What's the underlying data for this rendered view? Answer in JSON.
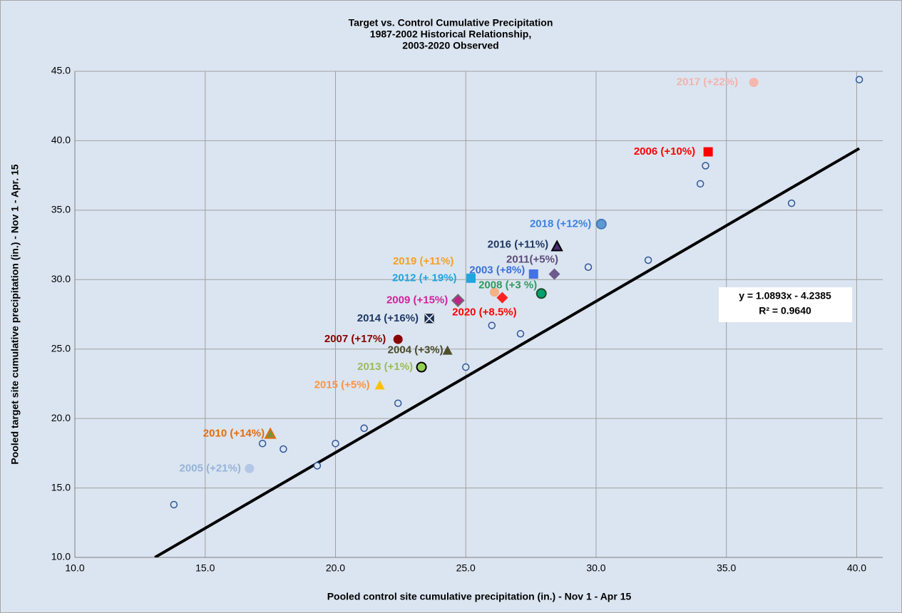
{
  "chart_data": {
    "type": "scatter",
    "title": "Target vs. Control Cumulative Precipitation",
    "subtitle": [
      "1987-2002 Historical Relationship,",
      "2003-2020 Observed"
    ],
    "x_label": "Pooled control site cumulative precipitation (in.) - Nov 1 - Apr 15",
    "y_label": "Pooled target site cumulative precipitation (in.) - Nov 1 - Apr. 15",
    "xlim": [
      10,
      41
    ],
    "ylim": [
      10,
      45
    ],
    "xticks": [
      {
        "value": 10,
        "label": "10.0"
      },
      {
        "value": 15,
        "label": "15.0"
      },
      {
        "value": 20,
        "label": "20.0"
      },
      {
        "value": 25,
        "label": "25.0"
      },
      {
        "value": 30,
        "label": "30.0"
      },
      {
        "value": 35,
        "label": "35.0"
      },
      {
        "value": 40,
        "label": "40.0"
      }
    ],
    "yticks": [
      {
        "value": 10,
        "label": "10.0"
      },
      {
        "value": 15,
        "label": "15.0"
      },
      {
        "value": 20,
        "label": "20.0"
      },
      {
        "value": 25,
        "label": "25.0"
      },
      {
        "value": 30,
        "label": "30.0"
      },
      {
        "value": 35,
        "label": "35.0"
      },
      {
        "value": 40,
        "label": "40.0"
      },
      {
        "value": 45,
        "label": "45.0"
      }
    ],
    "grid": true,
    "series": [
      {
        "color": "#2f5597",
        "x": [
          13.8,
          17.2,
          18.0,
          19.3,
          20.0,
          21.1,
          22.4,
          25.0,
          26.0,
          27.1,
          29.7,
          32.0,
          34.0,
          34.2,
          37.5,
          40.1
        ],
        "values": [
          13.8,
          18.2,
          17.8,
          16.6,
          18.2,
          19.3,
          21.1,
          23.7,
          26.7,
          26.1,
          30.9,
          31.4,
          36.9,
          38.2,
          35.5,
          44.4
        ]
      }
    ],
    "labeled_points": [
      {
        "label": "2017 (+22%)",
        "x": 36.05,
        "y": 44.2,
        "marker": "circle",
        "color": "#f4b6ae",
        "label_color": "#f2b3ad"
      },
      {
        "label": "2006 (+10%)",
        "x": 34.3,
        "y": 39.2,
        "marker": "square",
        "color": "#ff0000",
        "label_color": "#ff0000"
      },
      {
        "label": "2018 (+12%)",
        "x": 30.2,
        "y": 34.0,
        "marker": "circle",
        "color": "#5b9bd5",
        "stroke": "#4a78b0",
        "label_color": "#3f7fe0"
      },
      {
        "label": "2016 (+11%)",
        "x": 28.5,
        "y": 32.4,
        "marker": "triangle",
        "color": "#4b2a6e",
        "stroke": "#000000",
        "label_color": "#1f3864"
      },
      {
        "label": "2011(+5%)",
        "x": 28.4,
        "y": 30.4,
        "marker": "diamond",
        "color": "#6e5a8c",
        "label_color": "#5b4b7a"
      },
      {
        "label": "2019 (+11%)",
        "x": 26.1,
        "y": 29.1,
        "marker": "circle",
        "color": "#f4b183",
        "label_color": "#f5a023"
      },
      {
        "label": "2003 (+8%)",
        "x": 27.6,
        "y": 30.4,
        "marker": "square",
        "color": "#4472e4",
        "label_color": "#3a6fd8"
      },
      {
        "label": "2012 (+ 19%)",
        "x": 25.2,
        "y": 30.1,
        "marker": "square",
        "color": "#1fa6e0",
        "label_color": "#1fa6e0"
      },
      {
        "label": "2008 (+3 %)",
        "x": 27.9,
        "y": 29.0,
        "marker": "circle",
        "color": "#00a070",
        "stroke": "#1e4d2b",
        "label_color": "#2e9a5e"
      },
      {
        "label": "2009 (+15%)",
        "x": 24.7,
        "y": 28.5,
        "marker": "diamond",
        "color": "#c0238a",
        "stroke": "#6b6b6b",
        "label_color": "#d0239a"
      },
      {
        "label": "2020 (+8.5%)",
        "x": 26.4,
        "y": 28.7,
        "marker": "diamond",
        "color": "#ff2020",
        "label_color": "#ff0000"
      },
      {
        "label": "2014 (+16%)",
        "x": 23.6,
        "y": 27.2,
        "marker": "squarex",
        "color": "#1f3864",
        "label_color": "#1f3864"
      },
      {
        "label": "2007 (+17%)",
        "x": 22.4,
        "y": 25.7,
        "marker": "circle",
        "color": "#8b0000",
        "label_color": "#8b0000"
      },
      {
        "label": "2004 (+3%)",
        "x": 24.3,
        "y": 24.9,
        "marker": "triangle",
        "color": "#4f4f2f",
        "label_color": "#4a4a2a"
      },
      {
        "label": "2013 (+1%)",
        "x": 23.3,
        "y": 23.7,
        "marker": "circle",
        "color": "#92d050",
        "stroke": "#000000",
        "label_color": "#9bbb59"
      },
      {
        "label": "2015 (+5%)",
        "x": 21.7,
        "y": 22.4,
        "marker": "triangle",
        "color": "#ffc000",
        "label_color": "#f79646"
      },
      {
        "label": "2010 (+14%)",
        "x": 17.5,
        "y": 18.9,
        "marker": "triangle",
        "color": "#76923c",
        "stroke": "#e46c0a",
        "label_color": "#e46c0a"
      },
      {
        "label": "2005 (+21%)",
        "x": 16.7,
        "y": 16.4,
        "marker": "circle",
        "color": "#b4c7e7",
        "label_color": "#95b3d7"
      }
    ],
    "trendline": {
      "slope": 1.0893,
      "intercept": -4.2385,
      "color": "#000000",
      "label": "y = 1.0893x - 4.2385",
      "r2_label": "R² = 0.9640"
    }
  }
}
